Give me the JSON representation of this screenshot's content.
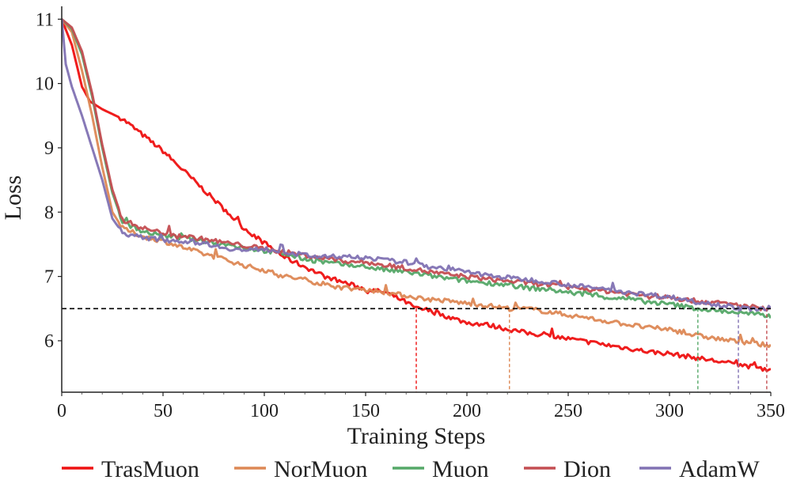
{
  "chart_data": {
    "type": "line",
    "xlabel": "Training Steps",
    "ylabel": "Loss",
    "xlim": [
      0,
      350
    ],
    "ylim": [
      5.2,
      11.2
    ],
    "xticks": [
      0,
      50,
      100,
      150,
      200,
      250,
      300,
      350
    ],
    "yticks": [
      6,
      7,
      8,
      9,
      10,
      11
    ],
    "grid": false,
    "legend_position": "bottom",
    "threshold": {
      "y": 6.5,
      "color": "#000000",
      "style": "dashed"
    },
    "series": [
      {
        "name": "TrasMuon",
        "color": "#ee1111",
        "target_step": 175,
        "points": [
          [
            0,
            11.0
          ],
          [
            5,
            10.6
          ],
          [
            10,
            9.95
          ],
          [
            14,
            9.72
          ],
          [
            20,
            9.6
          ],
          [
            30,
            9.45
          ],
          [
            40,
            9.2
          ],
          [
            50,
            8.95
          ],
          [
            60,
            8.65
          ],
          [
            70,
            8.35
          ],
          [
            80,
            8.05
          ],
          [
            90,
            7.75
          ],
          [
            100,
            7.52
          ],
          [
            110,
            7.3
          ],
          [
            120,
            7.15
          ],
          [
            130,
            7.0
          ],
          [
            140,
            6.9
          ],
          [
            150,
            6.8
          ],
          [
            160,
            6.75
          ],
          [
            170,
            6.6
          ],
          [
            175,
            6.5
          ],
          [
            180,
            6.48
          ],
          [
            190,
            6.38
          ],
          [
            200,
            6.28
          ],
          [
            210,
            6.25
          ],
          [
            220,
            6.18
          ],
          [
            230,
            6.12
          ],
          [
            240,
            6.08
          ],
          [
            250,
            6.03
          ],
          [
            260,
            5.98
          ],
          [
            270,
            5.93
          ],
          [
            280,
            5.88
          ],
          [
            290,
            5.83
          ],
          [
            300,
            5.8
          ],
          [
            310,
            5.75
          ],
          [
            320,
            5.7
          ],
          [
            330,
            5.65
          ],
          [
            340,
            5.6
          ],
          [
            350,
            5.55
          ]
        ]
      },
      {
        "name": "NorMuon",
        "color": "#dd8855",
        "target_step": 221,
        "points": [
          [
            0,
            11.0
          ],
          [
            5,
            10.8
          ],
          [
            10,
            10.2
          ],
          [
            15,
            9.5
          ],
          [
            20,
            8.7
          ],
          [
            25,
            8.0
          ],
          [
            30,
            7.75
          ],
          [
            40,
            7.62
          ],
          [
            50,
            7.55
          ],
          [
            60,
            7.45
          ],
          [
            70,
            7.35
          ],
          [
            80,
            7.27
          ],
          [
            90,
            7.17
          ],
          [
            100,
            7.1
          ],
          [
            110,
            7.0
          ],
          [
            120,
            6.95
          ],
          [
            130,
            6.87
          ],
          [
            140,
            6.82
          ],
          [
            150,
            6.8
          ],
          [
            160,
            6.75
          ],
          [
            170,
            6.7
          ],
          [
            180,
            6.65
          ],
          [
            190,
            6.62
          ],
          [
            200,
            6.58
          ],
          [
            210,
            6.55
          ],
          [
            221,
            6.5
          ],
          [
            230,
            6.5
          ],
          [
            240,
            6.45
          ],
          [
            250,
            6.4
          ],
          [
            260,
            6.35
          ],
          [
            270,
            6.3
          ],
          [
            280,
            6.25
          ],
          [
            290,
            6.2
          ],
          [
            300,
            6.18
          ],
          [
            310,
            6.1
          ],
          [
            320,
            6.05
          ],
          [
            330,
            6.0
          ],
          [
            340,
            5.97
          ],
          [
            350,
            5.92
          ]
        ]
      },
      {
        "name": "Muon",
        "color": "#55a868",
        "target_step": 314,
        "points": [
          [
            0,
            11.0
          ],
          [
            5,
            10.85
          ],
          [
            10,
            10.45
          ],
          [
            15,
            9.8
          ],
          [
            20,
            9.0
          ],
          [
            25,
            8.3
          ],
          [
            30,
            7.85
          ],
          [
            40,
            7.7
          ],
          [
            50,
            7.63
          ],
          [
            60,
            7.6
          ],
          [
            70,
            7.55
          ],
          [
            80,
            7.5
          ],
          [
            90,
            7.45
          ],
          [
            100,
            7.4
          ],
          [
            110,
            7.35
          ],
          [
            120,
            7.27
          ],
          [
            130,
            7.22
          ],
          [
            140,
            7.18
          ],
          [
            150,
            7.15
          ],
          [
            160,
            7.1
          ],
          [
            170,
            7.07
          ],
          [
            180,
            7.02
          ],
          [
            190,
            6.97
          ],
          [
            200,
            6.93
          ],
          [
            210,
            6.9
          ],
          [
            220,
            6.87
          ],
          [
            230,
            6.82
          ],
          [
            240,
            6.8
          ],
          [
            250,
            6.75
          ],
          [
            260,
            6.72
          ],
          [
            270,
            6.67
          ],
          [
            280,
            6.65
          ],
          [
            290,
            6.6
          ],
          [
            300,
            6.57
          ],
          [
            310,
            6.52
          ],
          [
            314,
            6.5
          ],
          [
            320,
            6.48
          ],
          [
            330,
            6.45
          ],
          [
            340,
            6.42
          ],
          [
            350,
            6.38
          ]
        ]
      },
      {
        "name": "Dion",
        "color": "#c44e52",
        "target_step": 348,
        "points": [
          [
            0,
            11.0
          ],
          [
            5,
            10.87
          ],
          [
            10,
            10.5
          ],
          [
            15,
            9.85
          ],
          [
            20,
            9.05
          ],
          [
            25,
            8.35
          ],
          [
            30,
            7.88
          ],
          [
            40,
            7.75
          ],
          [
            50,
            7.68
          ],
          [
            60,
            7.63
          ],
          [
            70,
            7.58
          ],
          [
            80,
            7.53
          ],
          [
            90,
            7.48
          ],
          [
            100,
            7.43
          ],
          [
            110,
            7.38
          ],
          [
            120,
            7.33
          ],
          [
            130,
            7.28
          ],
          [
            140,
            7.24
          ],
          [
            150,
            7.22
          ],
          [
            160,
            7.17
          ],
          [
            170,
            7.13
          ],
          [
            180,
            7.08
          ],
          [
            190,
            7.03
          ],
          [
            200,
            7.0
          ],
          [
            210,
            6.96
          ],
          [
            220,
            6.93
          ],
          [
            230,
            6.9
          ],
          [
            240,
            6.87
          ],
          [
            250,
            6.83
          ],
          [
            260,
            6.8
          ],
          [
            270,
            6.77
          ],
          [
            280,
            6.73
          ],
          [
            290,
            6.7
          ],
          [
            300,
            6.67
          ],
          [
            310,
            6.63
          ],
          [
            320,
            6.6
          ],
          [
            330,
            6.57
          ],
          [
            340,
            6.53
          ],
          [
            348,
            6.5
          ],
          [
            350,
            6.5
          ]
        ]
      },
      {
        "name": "AdamW",
        "color": "#8172b3",
        "target_step": 334,
        "points": [
          [
            0,
            11.0
          ],
          [
            2,
            10.3
          ],
          [
            5,
            9.95
          ],
          [
            10,
            9.5
          ],
          [
            15,
            9.0
          ],
          [
            20,
            8.5
          ],
          [
            25,
            7.9
          ],
          [
            30,
            7.68
          ],
          [
            40,
            7.6
          ],
          [
            50,
            7.57
          ],
          [
            60,
            7.55
          ],
          [
            70,
            7.52
          ],
          [
            80,
            7.45
          ],
          [
            90,
            7.4
          ],
          [
            100,
            7.43
          ],
          [
            110,
            7.38
          ],
          [
            120,
            7.33
          ],
          [
            130,
            7.3
          ],
          [
            140,
            7.3
          ],
          [
            150,
            7.3
          ],
          [
            160,
            7.25
          ],
          [
            170,
            7.22
          ],
          [
            180,
            7.17
          ],
          [
            190,
            7.12
          ],
          [
            200,
            7.07
          ],
          [
            210,
            7.02
          ],
          [
            220,
            6.98
          ],
          [
            230,
            6.95
          ],
          [
            240,
            6.92
          ],
          [
            250,
            6.87
          ],
          [
            260,
            6.83
          ],
          [
            270,
            6.8
          ],
          [
            280,
            6.75
          ],
          [
            290,
            6.72
          ],
          [
            300,
            6.68
          ],
          [
            310,
            6.63
          ],
          [
            320,
            6.58
          ],
          [
            330,
            6.54
          ],
          [
            334,
            6.5
          ],
          [
            340,
            6.5
          ],
          [
            350,
            6.48
          ]
        ]
      }
    ]
  }
}
